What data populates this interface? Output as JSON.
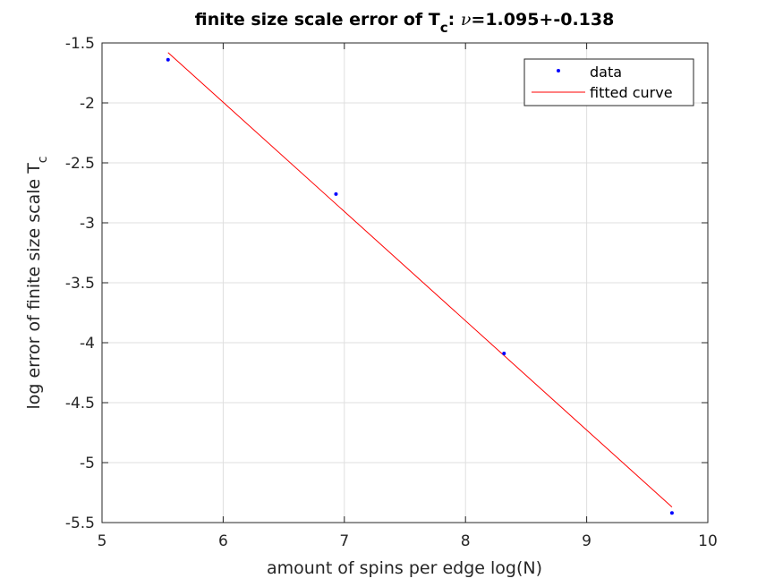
{
  "chart_data": {
    "type": "line",
    "title": {
      "prefix": "finite size scale error of T",
      "prefix_sub": "c",
      "colon": ": ",
      "nu_symbol": "ν",
      "suffix": "=1.095+-0.138"
    },
    "xlabel": "amount of spins per edge log(N)",
    "ylabel": {
      "text": "log error of finite size scale T",
      "sub": "c"
    },
    "xlim": [
      5,
      10
    ],
    "ylim": [
      -5.5,
      -1.5
    ],
    "xticks": [
      5,
      6,
      7,
      8,
      9,
      10
    ],
    "xtick_labels": [
      "5",
      "6",
      "7",
      "8",
      "9",
      "10"
    ],
    "yticks": [
      -1.5,
      -2,
      -2.5,
      -3,
      -3.5,
      -4,
      -4.5,
      -5,
      -5.5
    ],
    "ytick_labels": [
      "-1.5",
      "-2",
      "-2.5",
      "-3",
      "-3.5",
      "-4",
      "-4.5",
      "-5",
      "-5.5"
    ],
    "grid": true,
    "legend_position": "top-right",
    "series": [
      {
        "name": "data",
        "style": "markers",
        "color": "#0000ff",
        "x": [
          5.545,
          6.931,
          8.318,
          9.704
        ],
        "y": [
          -1.64,
          -2.76,
          -4.09,
          -5.42
        ]
      },
      {
        "name": "fitted curve",
        "style": "line",
        "color": "#ff0000",
        "x": [
          5.545,
          9.704
        ],
        "y": [
          -1.58,
          -5.37
        ]
      }
    ]
  }
}
